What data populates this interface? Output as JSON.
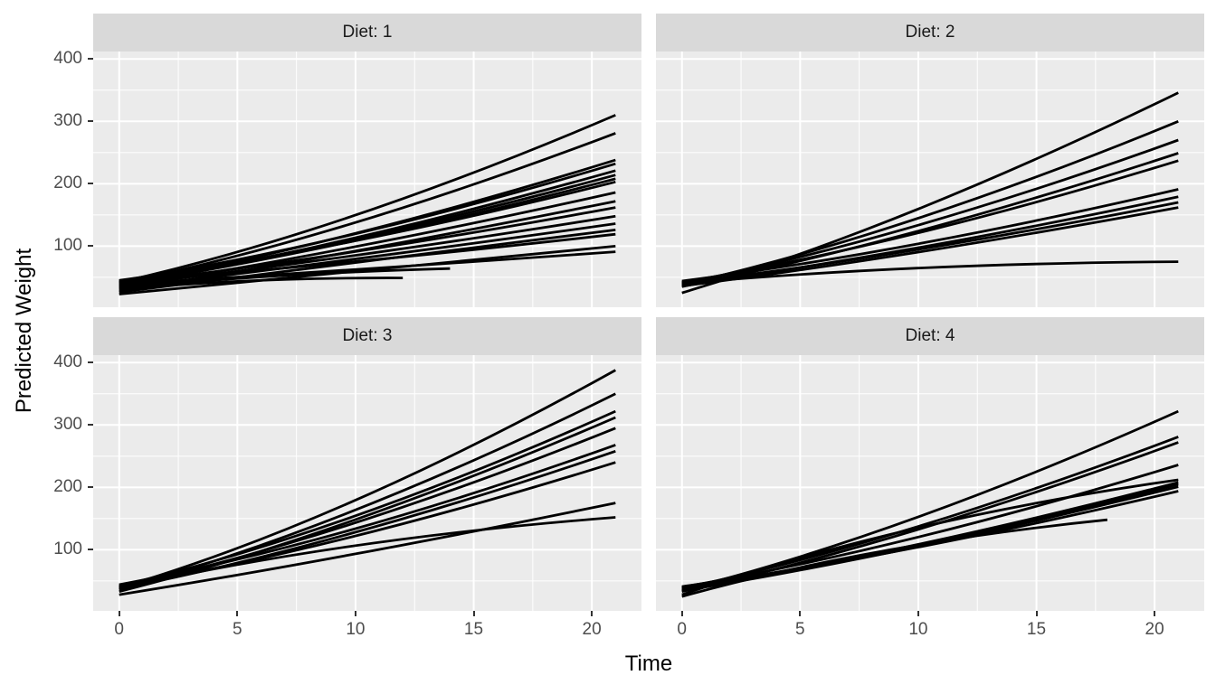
{
  "chart_data": {
    "type": "line",
    "title": "",
    "xlabel": "Time",
    "ylabel": "Predicted Weight",
    "x_ticks": [
      0,
      5,
      10,
      15,
      20
    ],
    "y_ticks": [
      100,
      200,
      300,
      400
    ],
    "x_minor": [
      2.5,
      7.5,
      12.5,
      17.5
    ],
    "y_minor": [
      50,
      150,
      250,
      350
    ],
    "xlim": [
      -1.1,
      22.1
    ],
    "ylim": [
      2,
      412
    ],
    "grid": true,
    "legend": "none",
    "line_color": "#000000",
    "panel_bg": "#EBEBEB",
    "strip_bg": "#D9D9D9",
    "grid_color": "#FFFFFF",
    "tick_label_color": "#4D4D4D",
    "facets": [
      {
        "label": "Diet: 1",
        "series": [
          {
            "start": 42,
            "end": 310,
            "t_end": 21
          },
          {
            "start": 40,
            "end": 281,
            "t_end": 21
          },
          {
            "start": 38,
            "end": 238,
            "t_end": 21
          },
          {
            "start": 44,
            "end": 232,
            "t_end": 21
          },
          {
            "start": 36,
            "end": 221,
            "t_end": 21
          },
          {
            "start": 41,
            "end": 214,
            "t_end": 21
          },
          {
            "start": 38,
            "end": 208,
            "t_end": 21
          },
          {
            "start": 45,
            "end": 203,
            "t_end": 21
          },
          {
            "start": 34,
            "end": 186,
            "t_end": 21
          },
          {
            "start": 28,
            "end": 172,
            "t_end": 21
          },
          {
            "start": 40,
            "end": 162,
            "t_end": 21
          },
          {
            "start": 37,
            "end": 148,
            "t_end": 21
          },
          {
            "start": 33,
            "end": 136,
            "t_end": 21
          },
          {
            "start": 26,
            "end": 126,
            "t_end": 21
          },
          {
            "start": 43,
            "end": 119,
            "t_end": 21
          },
          {
            "start": 23,
            "end": 100,
            "t_end": 21,
            "ctrl": 58
          },
          {
            "start": 39,
            "end": 91,
            "t_end": 21,
            "ctrl": 60
          },
          {
            "start": 32,
            "end": 64,
            "t_end": 14,
            "ctrl": 56
          },
          {
            "start": 30,
            "end": 49,
            "t_end": 12,
            "ctrl": 50
          },
          {
            "start": 36,
            "end": 42,
            "t_end": 2,
            "ctrl": 40
          }
        ]
      },
      {
        "label": "Diet: 2",
        "series": [
          {
            "start": 25,
            "end": 346,
            "t_end": 21
          },
          {
            "start": 38,
            "end": 300,
            "t_end": 21
          },
          {
            "start": 40,
            "end": 270,
            "t_end": 21
          },
          {
            "start": 35,
            "end": 249,
            "t_end": 21
          },
          {
            "start": 42,
            "end": 237,
            "t_end": 21
          },
          {
            "start": 44,
            "end": 191,
            "t_end": 21
          },
          {
            "start": 38,
            "end": 179,
            "t_end": 21
          },
          {
            "start": 41,
            "end": 170,
            "t_end": 21
          },
          {
            "start": 36,
            "end": 162,
            "t_end": 21
          },
          {
            "start": 40,
            "end": 75,
            "t_end": 21,
            "ctrl": 72
          }
        ]
      },
      {
        "label": "Diet: 3",
        "series": [
          {
            "start": 39,
            "end": 388,
            "t_end": 21
          },
          {
            "start": 36,
            "end": 350,
            "t_end": 21
          },
          {
            "start": 42,
            "end": 322,
            "t_end": 21
          },
          {
            "start": 33,
            "end": 312,
            "t_end": 21
          },
          {
            "start": 40,
            "end": 295,
            "t_end": 21
          },
          {
            "start": 44,
            "end": 268,
            "t_end": 21
          },
          {
            "start": 37,
            "end": 258,
            "t_end": 21
          },
          {
            "start": 41,
            "end": 240,
            "t_end": 21
          },
          {
            "start": 28,
            "end": 175,
            "t_end": 21,
            "ctrl": 85
          },
          {
            "start": 38,
            "end": 152,
            "t_end": 21,
            "ctrl": 118
          }
        ]
      },
      {
        "label": "Diet: 4",
        "series": [
          {
            "start": 35,
            "end": 322,
            "t_end": 21
          },
          {
            "start": 38,
            "end": 281,
            "t_end": 21
          },
          {
            "start": 33,
            "end": 272,
            "t_end": 21
          },
          {
            "start": 40,
            "end": 236,
            "t_end": 21
          },
          {
            "start": 28,
            "end": 212,
            "t_end": 21,
            "ctrl": 150
          },
          {
            "start": 37,
            "end": 208,
            "t_end": 21
          },
          {
            "start": 39,
            "end": 205,
            "t_end": 21
          },
          {
            "start": 34,
            "end": 201,
            "t_end": 21
          },
          {
            "start": 41,
            "end": 194,
            "t_end": 21
          },
          {
            "start": 25,
            "end": 148,
            "t_end": 18,
            "ctrl": 110
          }
        ]
      }
    ]
  }
}
